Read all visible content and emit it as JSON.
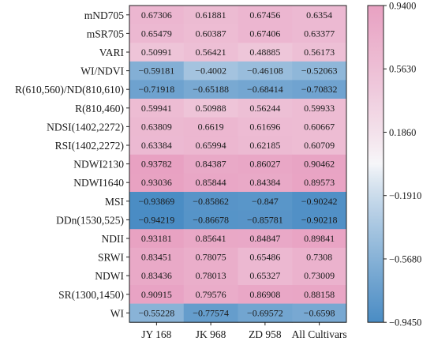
{
  "chart_data": {
    "type": "heatmap",
    "title": "",
    "xlabel": "",
    "ylabel": "",
    "columns": [
      "JY 168",
      "JK 968",
      "ZD 958",
      "All Cultivars"
    ],
    "rows": [
      "mND705",
      "mSR705",
      "VARI",
      "WI/NDVI",
      "R(610,560)/ND(810,610)",
      "R(810,460)",
      "NDSI(1402,2272)",
      "RSI(1402,2272)",
      "NDWI2130",
      "NDWI1640",
      "MSI",
      "DDn(1530,525)",
      "NDII",
      "SRWI",
      "NDWI",
      "SR(1300,1450)",
      "WI"
    ],
    "values": [
      [
        0.67306,
        0.61881,
        0.67456,
        0.6354
      ],
      [
        0.65479,
        0.60387,
        0.67406,
        0.63377
      ],
      [
        0.50991,
        0.56421,
        0.48885,
        0.56173
      ],
      [
        -0.59181,
        -0.4002,
        -0.46108,
        -0.52063
      ],
      [
        -0.71918,
        -0.65188,
        -0.68414,
        -0.70832
      ],
      [
        0.59941,
        0.50988,
        0.56244,
        0.59933
      ],
      [
        0.63809,
        0.6619,
        0.61696,
        0.60667
      ],
      [
        0.63384,
        0.65994,
        0.62185,
        0.60709
      ],
      [
        0.93782,
        0.84387,
        0.86027,
        0.90462
      ],
      [
        0.93036,
        0.85844,
        0.84384,
        0.89573
      ],
      [
        -0.93869,
        -0.85862,
        -0.847,
        -0.90242
      ],
      [
        -0.94219,
        -0.86678,
        -0.85781,
        -0.90218
      ],
      [
        0.93181,
        0.85641,
        0.84847,
        0.89841
      ],
      [
        0.83451,
        0.78075,
        0.65486,
        0.7308
      ],
      [
        0.83436,
        0.78013,
        0.65327,
        0.73009
      ],
      [
        0.90915,
        0.79576,
        0.86908,
        0.88158
      ],
      [
        -0.55228,
        -0.77574,
        -0.69572,
        -0.6598
      ]
    ],
    "display_values": [
      [
        "0.67306",
        "0.61881",
        "0.67456",
        "0.6354"
      ],
      [
        "0.65479",
        "0.60387",
        "0.67406",
        "0.63377"
      ],
      [
        "0.50991",
        "0.56421",
        "0.48885",
        "0.56173"
      ],
      [
        "−0.59181",
        "−0.4002",
        "−0.46108",
        "−0.52063"
      ],
      [
        "−0.71918",
        "−0.65188",
        "−0.68414",
        "−0.70832"
      ],
      [
        "0.59941",
        "0.50988",
        "0.56244",
        "0.59933"
      ],
      [
        "0.63809",
        "0.6619",
        "0.61696",
        "0.60667"
      ],
      [
        "0.63384",
        "0.65994",
        "0.62185",
        "0.60709"
      ],
      [
        "0.93782",
        "0.84387",
        "0.86027",
        "0.90462"
      ],
      [
        "0.93036",
        "0.85844",
        "0.84384",
        "0.89573"
      ],
      [
        "−0.93869",
        "−0.85862",
        "−0.847",
        "−0.90242"
      ],
      [
        "−0.94219",
        "−0.86678",
        "−0.85781",
        "−0.90218"
      ],
      [
        "0.93181",
        "0.85641",
        "0.84847",
        "0.89841"
      ],
      [
        "0.83451",
        "0.78075",
        "0.65486",
        "0.7308"
      ],
      [
        "0.83436",
        "0.78013",
        "0.65327",
        "0.73009"
      ],
      [
        "0.90915",
        "0.79576",
        "0.86908",
        "0.88158"
      ],
      [
        "−0.55228",
        "−0.77574",
        "−0.69572",
        "−0.6598"
      ]
    ],
    "colorbar": {
      "range": [
        -0.945,
        0.94
      ],
      "ticks": [
        0.94,
        0.563,
        0.186,
        -0.191,
        -0.568,
        -0.945
      ],
      "tick_labels": [
        "0.9400",
        "0.5630",
        "0.1860",
        "−0.1910",
        "−0.5680",
        "−0.9450"
      ],
      "colors": {
        "low": "#4a8cc4",
        "mid": "#f7f7f9",
        "high": "#e8a1c2"
      }
    },
    "grid": true,
    "legend": "colorbar-right"
  }
}
